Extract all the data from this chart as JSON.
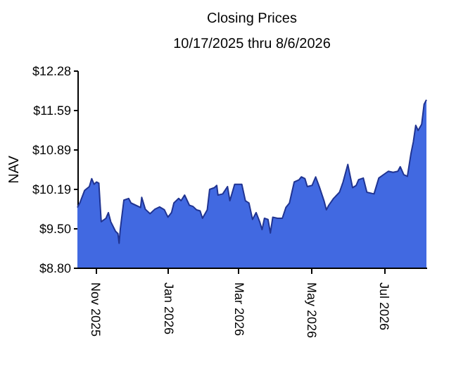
{
  "chart_data": {
    "type": "area",
    "title": "Closing Prices",
    "subtitle": "10/17/2025 thru 8/6/2026",
    "ylabel": "NAV",
    "x": [
      "2025-10-17",
      "2025-10-19",
      "2025-10-23",
      "2025-10-27",
      "2025-10-29",
      "2025-10-31",
      "2025-11-02",
      "2025-11-04",
      "2025-11-06",
      "2025-11-10",
      "2025-11-12",
      "2025-11-14",
      "2025-11-18",
      "2025-11-20",
      "2025-11-21",
      "2025-11-22",
      "2025-11-25",
      "2025-11-29",
      "2025-12-01",
      "2025-12-05",
      "2025-12-09",
      "2025-12-10",
      "2025-12-13",
      "2025-12-17",
      "2025-12-21",
      "2025-12-25",
      "2025-12-29",
      "2026-01-01",
      "2026-01-04",
      "2026-01-06",
      "2026-01-10",
      "2026-01-12",
      "2026-01-15",
      "2026-01-19",
      "2026-01-22",
      "2026-01-25",
      "2026-01-28",
      "2026-01-30",
      "2026-02-03",
      "2026-02-05",
      "2026-02-09",
      "2026-02-11",
      "2026-02-12",
      "2026-02-16",
      "2026-02-20",
      "2026-02-22",
      "2026-02-26",
      "2026-03-04",
      "2026-03-07",
      "2026-03-10",
      "2026-03-13",
      "2026-03-16",
      "2026-03-19",
      "2026-03-21",
      "2026-03-23",
      "2026-03-26",
      "2026-03-28",
      "2026-03-30",
      "2026-04-03",
      "2026-04-07",
      "2026-04-10",
      "2026-04-13",
      "2026-04-17",
      "2026-04-21",
      "2026-04-23",
      "2026-04-26",
      "2026-04-28",
      "2026-05-02",
      "2026-05-05",
      "2026-05-08",
      "2026-05-12",
      "2026-05-14",
      "2026-05-16",
      "2026-05-20",
      "2026-05-25",
      "2026-05-28",
      "2026-06-01",
      "2026-06-05",
      "2026-06-08",
      "2026-06-10",
      "2026-06-14",
      "2026-06-17",
      "2026-06-23",
      "2026-06-27",
      "2026-07-01",
      "2026-07-05",
      "2026-07-09",
      "2026-07-13",
      "2026-07-15",
      "2026-07-18",
      "2026-07-21",
      "2026-07-24",
      "2026-07-26",
      "2026-07-28",
      "2026-07-30",
      "2026-08-02",
      "2026-08-04",
      "2026-08-06"
    ],
    "series": [
      {
        "color": "#4169e1",
        "values": [
          9.86,
          9.94,
          10.16,
          10.23,
          10.37,
          10.27,
          10.31,
          10.29,
          9.61,
          9.67,
          9.77,
          9.61,
          9.44,
          9.4,
          9.23,
          9.48,
          9.99,
          10.02,
          9.94,
          9.9,
          9.86,
          10.04,
          9.83,
          9.75,
          9.83,
          9.87,
          9.82,
          9.69,
          9.77,
          9.94,
          10.02,
          9.98,
          10.08,
          9.9,
          9.88,
          9.82,
          9.8,
          9.67,
          9.82,
          10.18,
          10.21,
          10.25,
          10.08,
          10.1,
          10.23,
          9.98,
          10.27,
          10.27,
          9.98,
          9.94,
          9.65,
          9.77,
          9.61,
          9.47,
          9.67,
          9.65,
          9.41,
          9.69,
          9.67,
          9.67,
          9.86,
          9.94,
          10.31,
          10.35,
          10.4,
          10.37,
          10.23,
          10.25,
          10.4,
          10.23,
          9.98,
          9.82,
          9.9,
          10.02,
          10.13,
          10.31,
          10.62,
          10.21,
          10.25,
          10.35,
          10.38,
          10.13,
          10.1,
          10.38,
          10.44,
          10.5,
          10.48,
          10.5,
          10.58,
          10.44,
          10.41,
          10.81,
          11.02,
          11.31,
          11.22,
          11.33,
          11.68,
          11.76
        ]
      }
    ],
    "xlim": [
      "2025-10-17",
      "2026-08-06"
    ],
    "xticks": [
      {
        "value": "2025-11-01",
        "label": "Nov 2025"
      },
      {
        "value": "2026-01-01",
        "label": "Jan 2026"
      },
      {
        "value": "2026-03-01",
        "label": "Mar 2026"
      },
      {
        "value": "2026-05-01",
        "label": "May 2026"
      },
      {
        "value": "2026-07-01",
        "label": "Jul 2026"
      }
    ],
    "ylim": [
      8.8,
      12.28
    ],
    "yticks": [
      {
        "value": 8.8,
        "label": "$8.80"
      },
      {
        "value": 9.5,
        "label": "$9.50"
      },
      {
        "value": 10.19,
        "label": "$10.19"
      },
      {
        "value": 10.89,
        "label": "$10.89"
      },
      {
        "value": 11.59,
        "label": "$11.59"
      },
      {
        "value": 12.28,
        "label": "$12.28"
      }
    ],
    "grid": false
  }
}
